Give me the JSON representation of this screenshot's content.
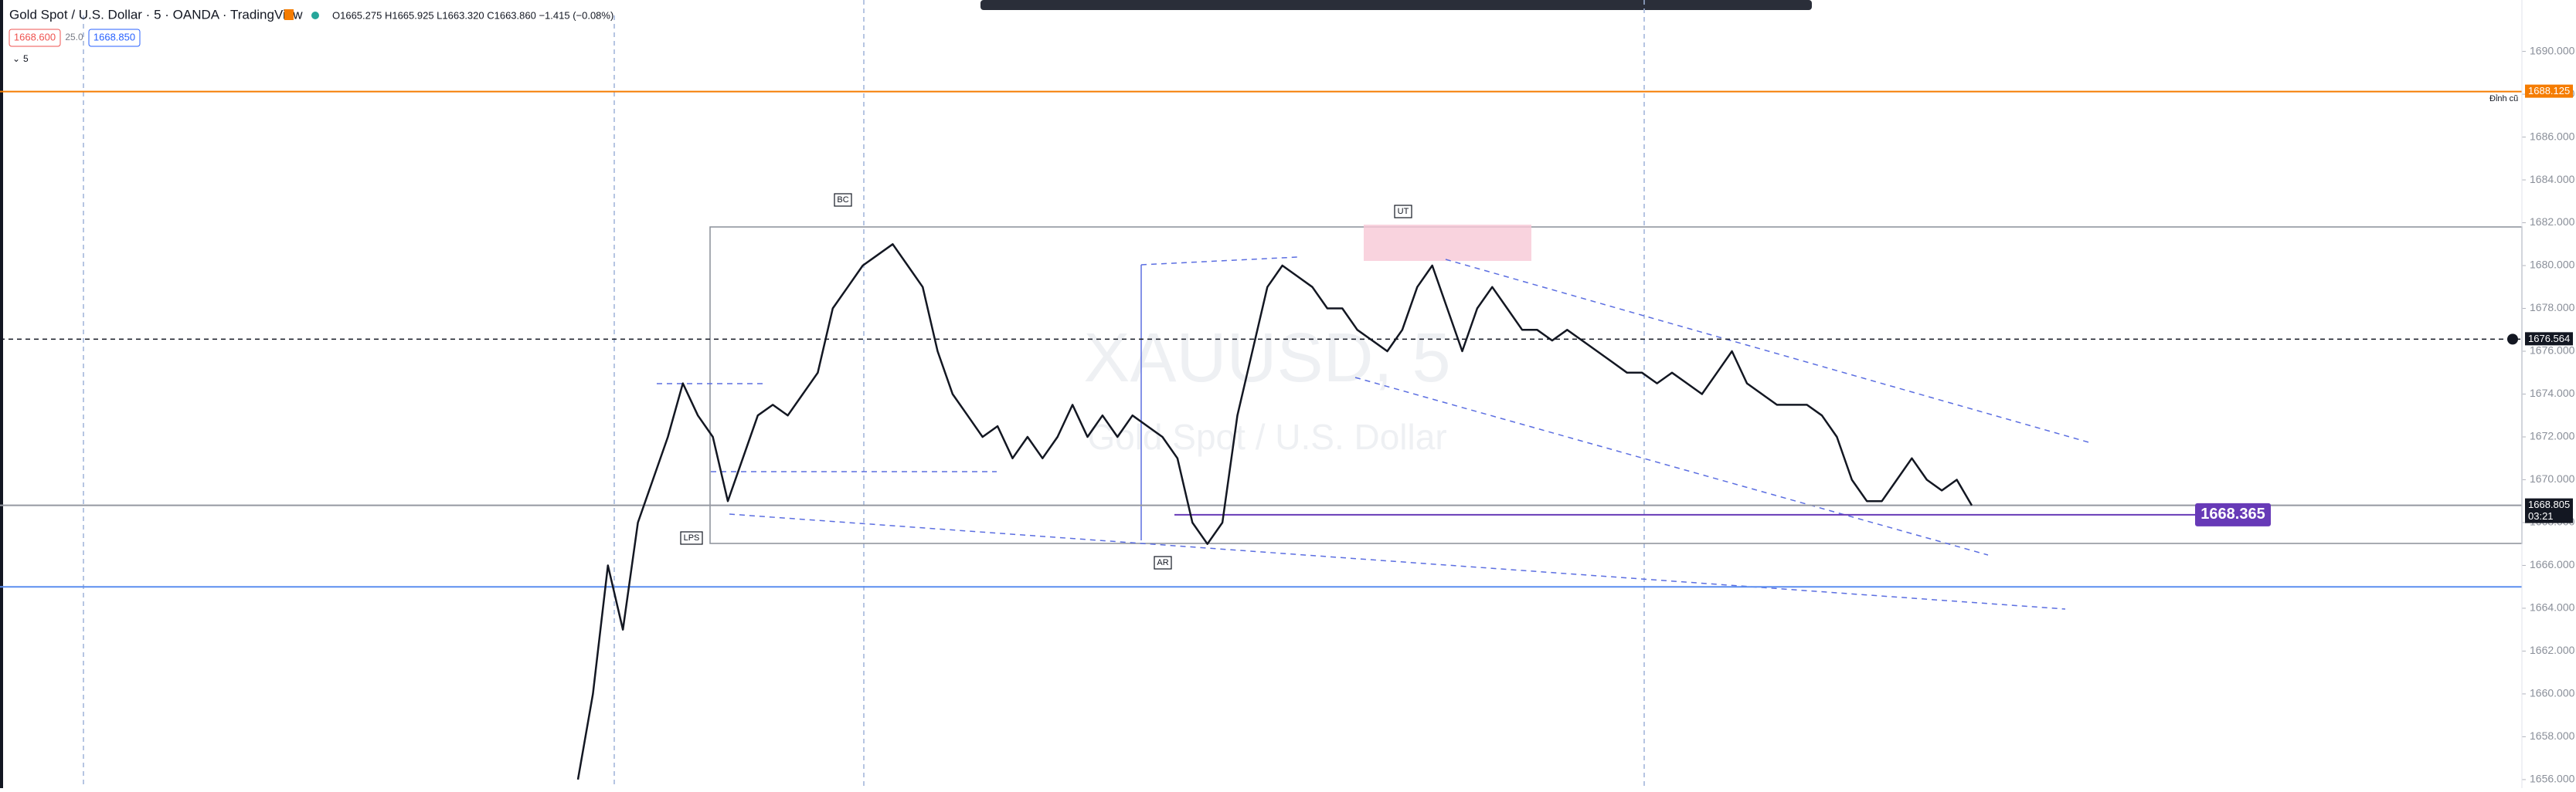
{
  "header": {
    "symbol": "Gold Spot / U.S. Dollar · 5 · OANDA · TradingView",
    "ohlc": "O1665.275 H1665.925 L1663.320 C1663.860 −1.415 (−0.08%)",
    "sell": "1668.600",
    "spread": "25.0",
    "buy": "1668.850",
    "interval": "5"
  },
  "watermark": {
    "symbol": "XAUUSD, 5",
    "name": "Gold Spot / U.S. Dollar"
  },
  "chart": {
    "ylim": [
      1655.6,
      1692.4
    ],
    "yticks": [
      {
        "value": 1656,
        "label": "1656.000"
      },
      {
        "value": 1658,
        "label": "1658.000"
      },
      {
        "value": 1660,
        "label": "1660.000"
      },
      {
        "value": 1662,
        "label": "1662.000"
      },
      {
        "value": 1664,
        "label": "1664.000"
      },
      {
        "value": 1666,
        "label": "1666.000"
      },
      {
        "value": 1668,
        "label": "1668.000"
      },
      {
        "value": 1670,
        "label": "1670.000"
      },
      {
        "value": 1672,
        "label": "1672.000"
      },
      {
        "value": 1674,
        "label": "1674.000"
      },
      {
        "value": 1676,
        "label": "1676.000"
      },
      {
        "value": 1678,
        "label": "1678.000"
      },
      {
        "value": 1680,
        "label": "1680.000"
      },
      {
        "value": 1682,
        "label": "1682.000"
      },
      {
        "value": 1684,
        "label": "1684.000"
      },
      {
        "value": 1686,
        "label": "1686.000"
      },
      {
        "value": 1688,
        "label": "1688.000"
      },
      {
        "value": 1690,
        "label": "1690.000"
      }
    ],
    "levels": [
      {
        "value": 1688.125,
        "label": "1688.125",
        "color": "#f57c00"
      },
      {
        "value": 1676.564,
        "label": "1676.564",
        "color": "#131722"
      },
      {
        "value": 1668.805,
        "label": "1668.805",
        "countdown": "03:21",
        "color": "#9598a1"
      },
      {
        "value": 1668.365,
        "label": "1668.365",
        "color": "#673ab7"
      },
      {
        "value": 1665,
        "color": "#5b8def"
      }
    ],
    "annotations": {
      "bc": "BC",
      "ut": "UT",
      "lps": "LPS",
      "ar": "AR",
      "note": "Đỉnh cũ"
    },
    "closes": [
      1656,
      1660,
      1666,
      1663,
      1668,
      1670,
      1672,
      1674.5,
      1673,
      1672,
      1669,
      1671,
      1673,
      1673.5,
      1673,
      1674,
      1675,
      1678,
      1679,
      1680,
      1680.5,
      1681,
      1680,
      1679,
      1676,
      1674,
      1673,
      1672,
      1672.5,
      1671,
      1672,
      1671,
      1672,
      1673.5,
      1672,
      1673,
      1672,
      1673,
      1672.5,
      1672,
      1671,
      1668,
      1667,
      1668,
      1673,
      1676,
      1679,
      1680,
      1679.5,
      1679,
      1678,
      1678,
      1677,
      1676.5,
      1676,
      1677,
      1679,
      1680,
      1678,
      1676,
      1678,
      1679,
      1678,
      1677,
      1677,
      1676.5,
      1677,
      1676.5,
      1676,
      1675.5,
      1675,
      1675,
      1674.5,
      1675,
      1674.5,
      1674,
      1675,
      1676,
      1674.5,
      1674,
      1673.5,
      1673.5,
      1673.5,
      1673,
      1672,
      1670,
      1669,
      1669,
      1670,
      1671,
      1670,
      1669.5,
      1670,
      1668.8
    ]
  }
}
